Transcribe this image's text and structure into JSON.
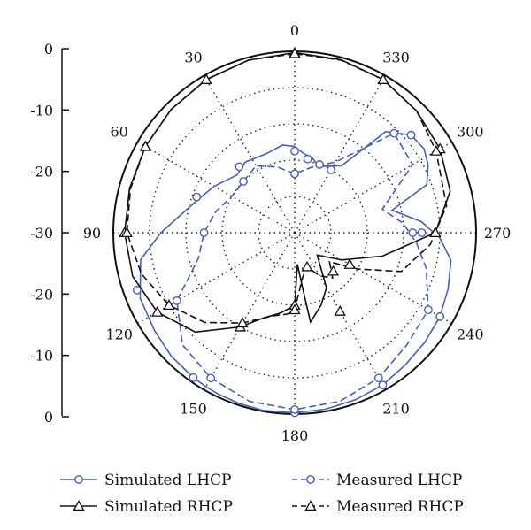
{
  "chart_data": {
    "type": "line",
    "subtype": "polar",
    "radial_axis": {
      "ticks": [
        "0",
        "-10",
        "-20",
        "-30",
        "-40"
      ],
      "tick_labels_top": [
        "0",
        "-10",
        "-20",
        "-30"
      ],
      "tick_labels_bottom": [
        "-20",
        "-10",
        "0"
      ],
      "range_db": [
        -40,
        0
      ]
    },
    "angle_labels": [
      "0",
      "30",
      "60",
      "90",
      "120",
      "150",
      "180",
      "210",
      "240",
      "270",
      "300",
      "330"
    ],
    "grid": true,
    "legend_position": "bottom",
    "colors": {
      "blue": "#4a5fb0",
      "black": "#111111"
    },
    "series": [
      {
        "name": "Simulated LHCP",
        "style": "solid",
        "color": "#4a5fb0",
        "marker": "circle",
        "angles": [
          0,
          8,
          20,
          35,
          45,
          60,
          73,
          90,
          100,
          113,
          125,
          135,
          145,
          150,
          155,
          162,
          170,
          180,
          190,
          200,
          210,
          220,
          230,
          240,
          250,
          260,
          268,
          275,
          283,
          290,
          297,
          303,
          310,
          318,
          325,
          333,
          340,
          347,
          353
        ],
        "values_db": [
          -21,
          -20.5,
          -21.5,
          -21,
          -22,
          -19.5,
          -17,
          -10.5,
          -5.5,
          -3,
          -2.3,
          -1.5,
          -1,
          -0.8,
          -0.6,
          -0.4,
          -0.2,
          -0.3,
          -0.5,
          -0.8,
          -1.2,
          -2,
          -2.5,
          -3,
          -4,
          -5,
          -8,
          -12,
          -18,
          -9,
          -7,
          -6,
          -6.5,
          -10,
          -22,
          -23.5,
          -24.5,
          -23,
          -22.5
        ],
        "marker_angles": [
          0,
          40,
          70,
          110,
          145,
          180,
          210,
          240,
          270,
          310,
          330,
          350
        ],
        "marker_values_db": [
          -22,
          -21,
          -17,
          -3,
          -1,
          -0.3,
          -1.2,
          -3,
          -12,
          -6.5,
          -24,
          -23.5
        ]
      },
      {
        "name": "Simulated RHCP",
        "style": "solid",
        "color": "#111111",
        "marker": "triangle",
        "angles": [
          0,
          15,
          30,
          45,
          60,
          75,
          90,
          105,
          120,
          135,
          150,
          160,
          170,
          180,
          185,
          188,
          190,
          200,
          210,
          225,
          240,
          255,
          270,
          285,
          300,
          315,
          330,
          345
        ],
        "values_db": [
          -0.3,
          -0.6,
          -1,
          -1.5,
          -2,
          -2.3,
          -2.5,
          -3,
          -5,
          -9,
          -16,
          -20,
          -22,
          -24,
          -33,
          -28,
          -20,
          -23,
          -26,
          -33,
          -28,
          -20,
          -9,
          -4.5,
          -3,
          -2,
          -1,
          -0.5
        ],
        "marker_angles": [
          0,
          30,
          60,
          90,
          120,
          150,
          180,
          210,
          240,
          270,
          300,
          330
        ],
        "marker_values_db": [
          -0.3,
          -1,
          -2,
          -2.5,
          -5,
          -16,
          -24,
          -20,
          -26,
          -9,
          -3,
          -1
        ]
      },
      {
        "name": "Measured LHCP",
        "style": "dashed",
        "color": "#4a5fb0",
        "marker": "circle",
        "angles": [
          0,
          15,
          30,
          45,
          60,
          75,
          90,
          105,
          120,
          135,
          150,
          165,
          180,
          195,
          210,
          225,
          240,
          255,
          265,
          275,
          285,
          300,
          315,
          330,
          345
        ],
        "values_db": [
          -27,
          -25,
          -23,
          -24,
          -24,
          -22,
          -20,
          -18,
          -10,
          -5,
          -3,
          -1.5,
          -1,
          -1.5,
          -3,
          -5,
          -6,
          -10,
          -13,
          -16,
          -20,
          -10,
          -9,
          -22,
          -25
        ],
        "marker_angles": [
          0,
          45,
          90,
          120,
          150,
          180,
          210,
          240,
          270,
          315
        ],
        "marker_values_db": [
          -27,
          -24,
          -20,
          -10,
          -3,
          -1,
          -3,
          -6,
          -14,
          -9
        ],
        "extra_markers": [
          {
            "angle": 340,
            "value_db": -24
          }
        ]
      },
      {
        "name": "Measured RHCP",
        "style": "dashed",
        "color": "#111111",
        "marker": "triangle",
        "angles": [
          0,
          15,
          30,
          45,
          60,
          75,
          90,
          105,
          120,
          135,
          150,
          165,
          175,
          180,
          190,
          200,
          210,
          220,
          230,
          240,
          250,
          265,
          280,
          300,
          315,
          330,
          345
        ],
        "values_db": [
          -0.5,
          -0.6,
          -1,
          -1.5,
          -2,
          -2.5,
          -3,
          -5,
          -8,
          -12,
          -17,
          -21,
          -22,
          -23,
          -30,
          -32,
          -29,
          -27,
          -30,
          -24,
          -15,
          -10,
          -6,
          -4,
          -2,
          -1,
          -0.6
        ],
        "marker_angles": [
          0,
          30,
          60,
          90,
          120,
          150,
          180,
          200,
          225,
          270,
          300,
          330
        ],
        "marker_values_db": [
          -0.5,
          -1,
          -2,
          -3,
          -8,
          -17,
          -23,
          -32,
          -28,
          -9,
          -4,
          -1
        ]
      }
    ]
  },
  "legend": {
    "items": [
      {
        "label": "Simulated LHCP"
      },
      {
        "label": "Measured LHCP"
      },
      {
        "label": "Simulated RHCP"
      },
      {
        "label": "Measured RHCP"
      }
    ]
  }
}
